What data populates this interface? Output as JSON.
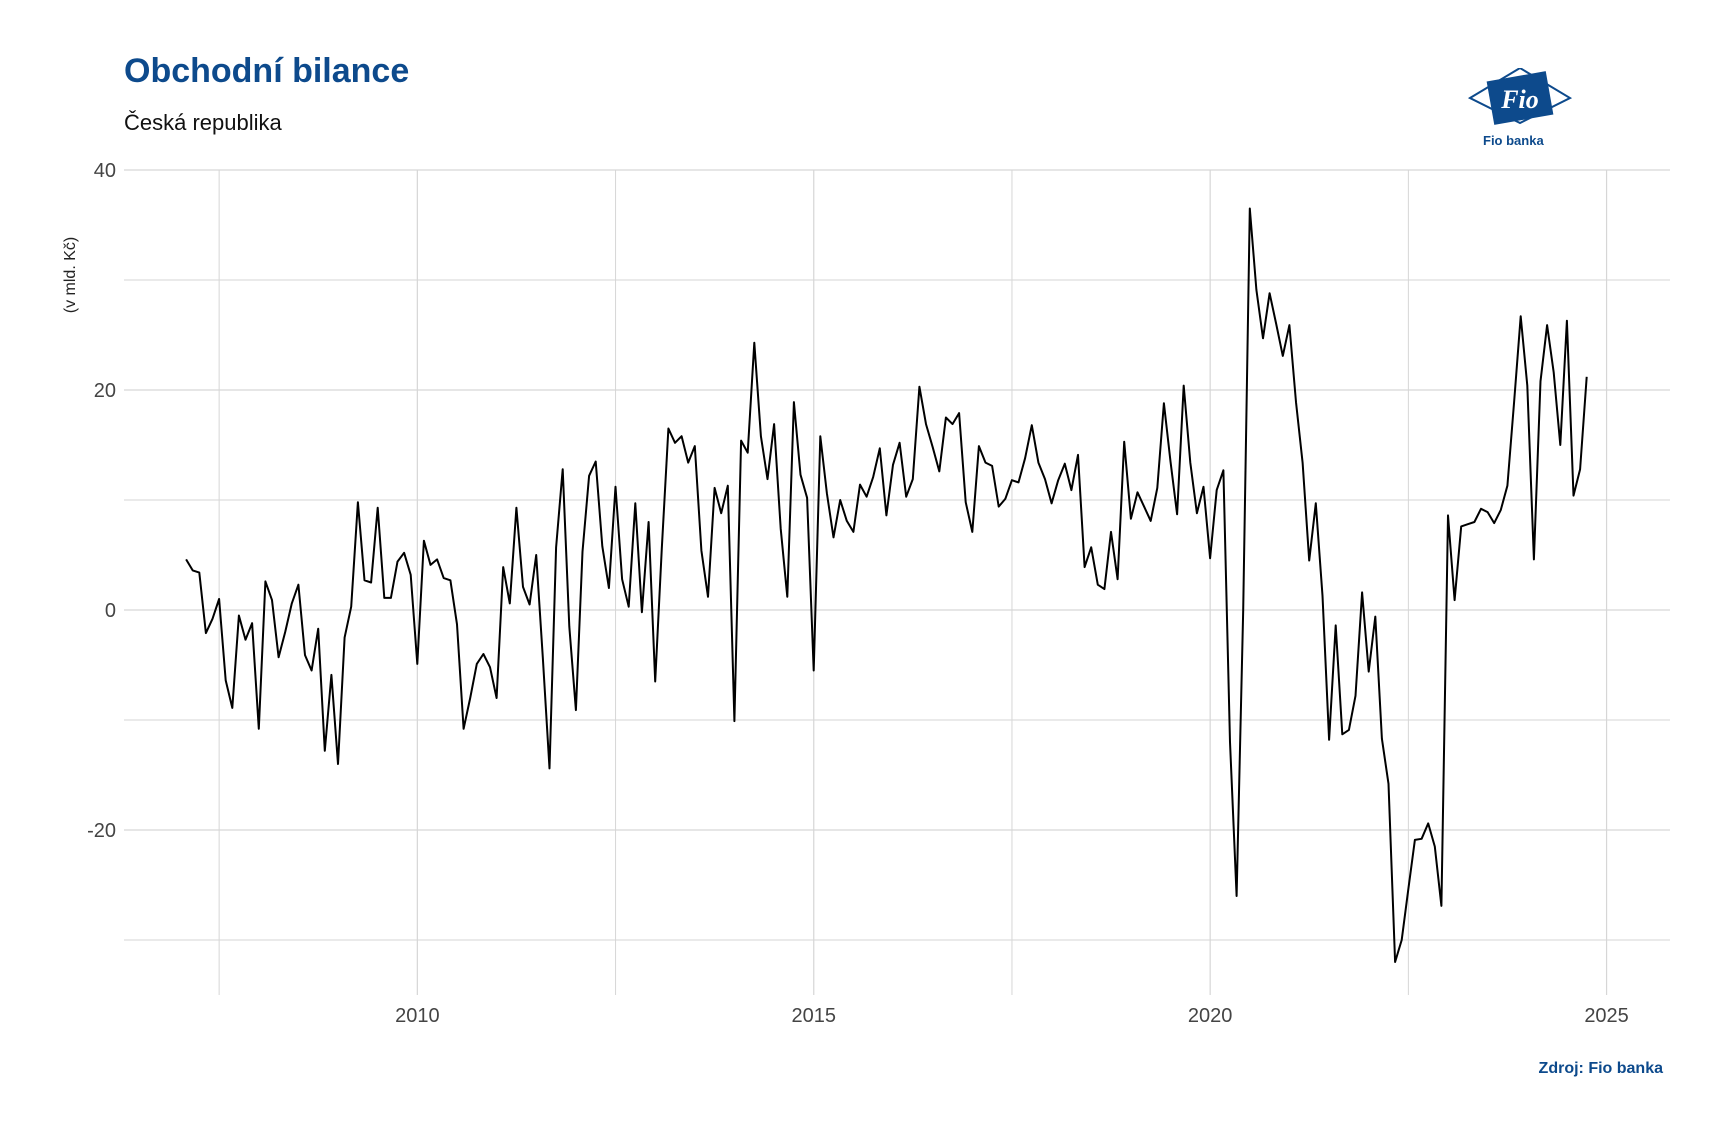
{
  "colors": {
    "brand": "#0d4a8c",
    "line": "#000000",
    "grid": "#d6d6d6"
  },
  "logo_label": "Fio banka",
  "source": "Zdroj: Fio banka",
  "chart_data": {
    "type": "line",
    "title": "Obchodní bilance",
    "subtitle": "Česká republika",
    "ylabel": "(v mld. Kč)",
    "xlabel": "",
    "xlim": [
      2006.3,
      2025.8
    ],
    "ylim": [
      -35,
      40
    ],
    "xticks": [
      2010,
      2015,
      2020,
      2025
    ],
    "yticks": [
      -20,
      0,
      20,
      40
    ],
    "ytick_labels": [
      "-20",
      "0",
      "20",
      "40"
    ],
    "grid": true,
    "x_start": 2007.083,
    "x_step": 0.0833333,
    "values": [
      4.6,
      3.6,
      3.4,
      -2.1,
      -0.8,
      1.0,
      -6.4,
      -8.9,
      -0.5,
      -2.7,
      -1.2,
      -10.8,
      2.6,
      0.9,
      -4.3,
      -2.0,
      0.6,
      2.3,
      -4.1,
      -5.5,
      -1.7,
      -12.8,
      -5.9,
      -14.0,
      -2.5,
      0.3,
      9.8,
      2.7,
      2.5,
      9.3,
      1.1,
      1.1,
      4.4,
      5.2,
      3.2,
      -4.9,
      6.3,
      4.1,
      4.6,
      2.9,
      2.7,
      -1.3,
      -10.8,
      -8.0,
      -4.9,
      -4.0,
      -5.2,
      -8.0,
      3.9,
      0.6,
      9.3,
      2.1,
      0.5,
      5.0,
      -4.3,
      -14.4,
      5.7,
      12.8,
      -1.5,
      -9.1,
      5.3,
      12.2,
      13.5,
      5.8,
      2.0,
      11.2,
      2.8,
      0.3,
      9.7,
      -0.2,
      8.0,
      -6.5,
      5.6,
      16.5,
      15.2,
      15.8,
      13.4,
      14.9,
      5.4,
      1.2,
      11.1,
      8.8,
      11.3,
      -10.1,
      15.4,
      14.3,
      24.3,
      15.8,
      11.9,
      16.9,
      7.4,
      1.2,
      18.9,
      12.3,
      10.2,
      -5.5,
      15.8,
      10.6,
      6.6,
      10.0,
      8.1,
      7.1,
      11.4,
      10.3,
      12.1,
      14.7,
      8.6,
      13.2,
      15.2,
      10.3,
      11.9,
      20.3,
      16.9,
      14.8,
      12.6,
      17.5,
      16.9,
      17.9,
      9.8,
      7.1,
      14.9,
      13.4,
      13.1,
      9.4,
      10.1,
      11.8,
      11.6,
      13.8,
      16.8,
      13.4,
      11.9,
      9.7,
      11.8,
      13.3,
      10.9,
      14.1,
      3.9,
      5.7,
      2.3,
      1.9,
      7.1,
      2.8,
      15.3,
      8.3,
      10.7,
      9.4,
      8.1,
      11.1,
      18.8,
      13.5,
      8.7,
      20.4,
      13.4,
      8.8,
      11.2,
      4.7,
      10.9,
      12.7,
      -12.0,
      -26.0,
      0.0,
      36.5,
      29.1,
      24.7,
      28.8,
      26.0,
      23.1,
      25.9,
      18.9,
      13.4,
      4.5,
      9.7,
      1.3,
      -11.8,
      -1.4,
      -11.3,
      -10.9,
      -7.8,
      1.6,
      -5.6,
      -0.6,
      -11.7,
      -15.8,
      -32.0,
      -30.0,
      -25.4,
      -20.9,
      -20.8,
      -19.4,
      -21.5,
      -26.9,
      8.6,
      0.9,
      7.6,
      7.8,
      8.0,
      9.2,
      8.9,
      7.9,
      9.1,
      11.3,
      18.9,
      26.7,
      20.4,
      4.6,
      20.8,
      25.9,
      21.6,
      15.0,
      26.3,
      10.4,
      12.8,
      21.2
    ]
  }
}
